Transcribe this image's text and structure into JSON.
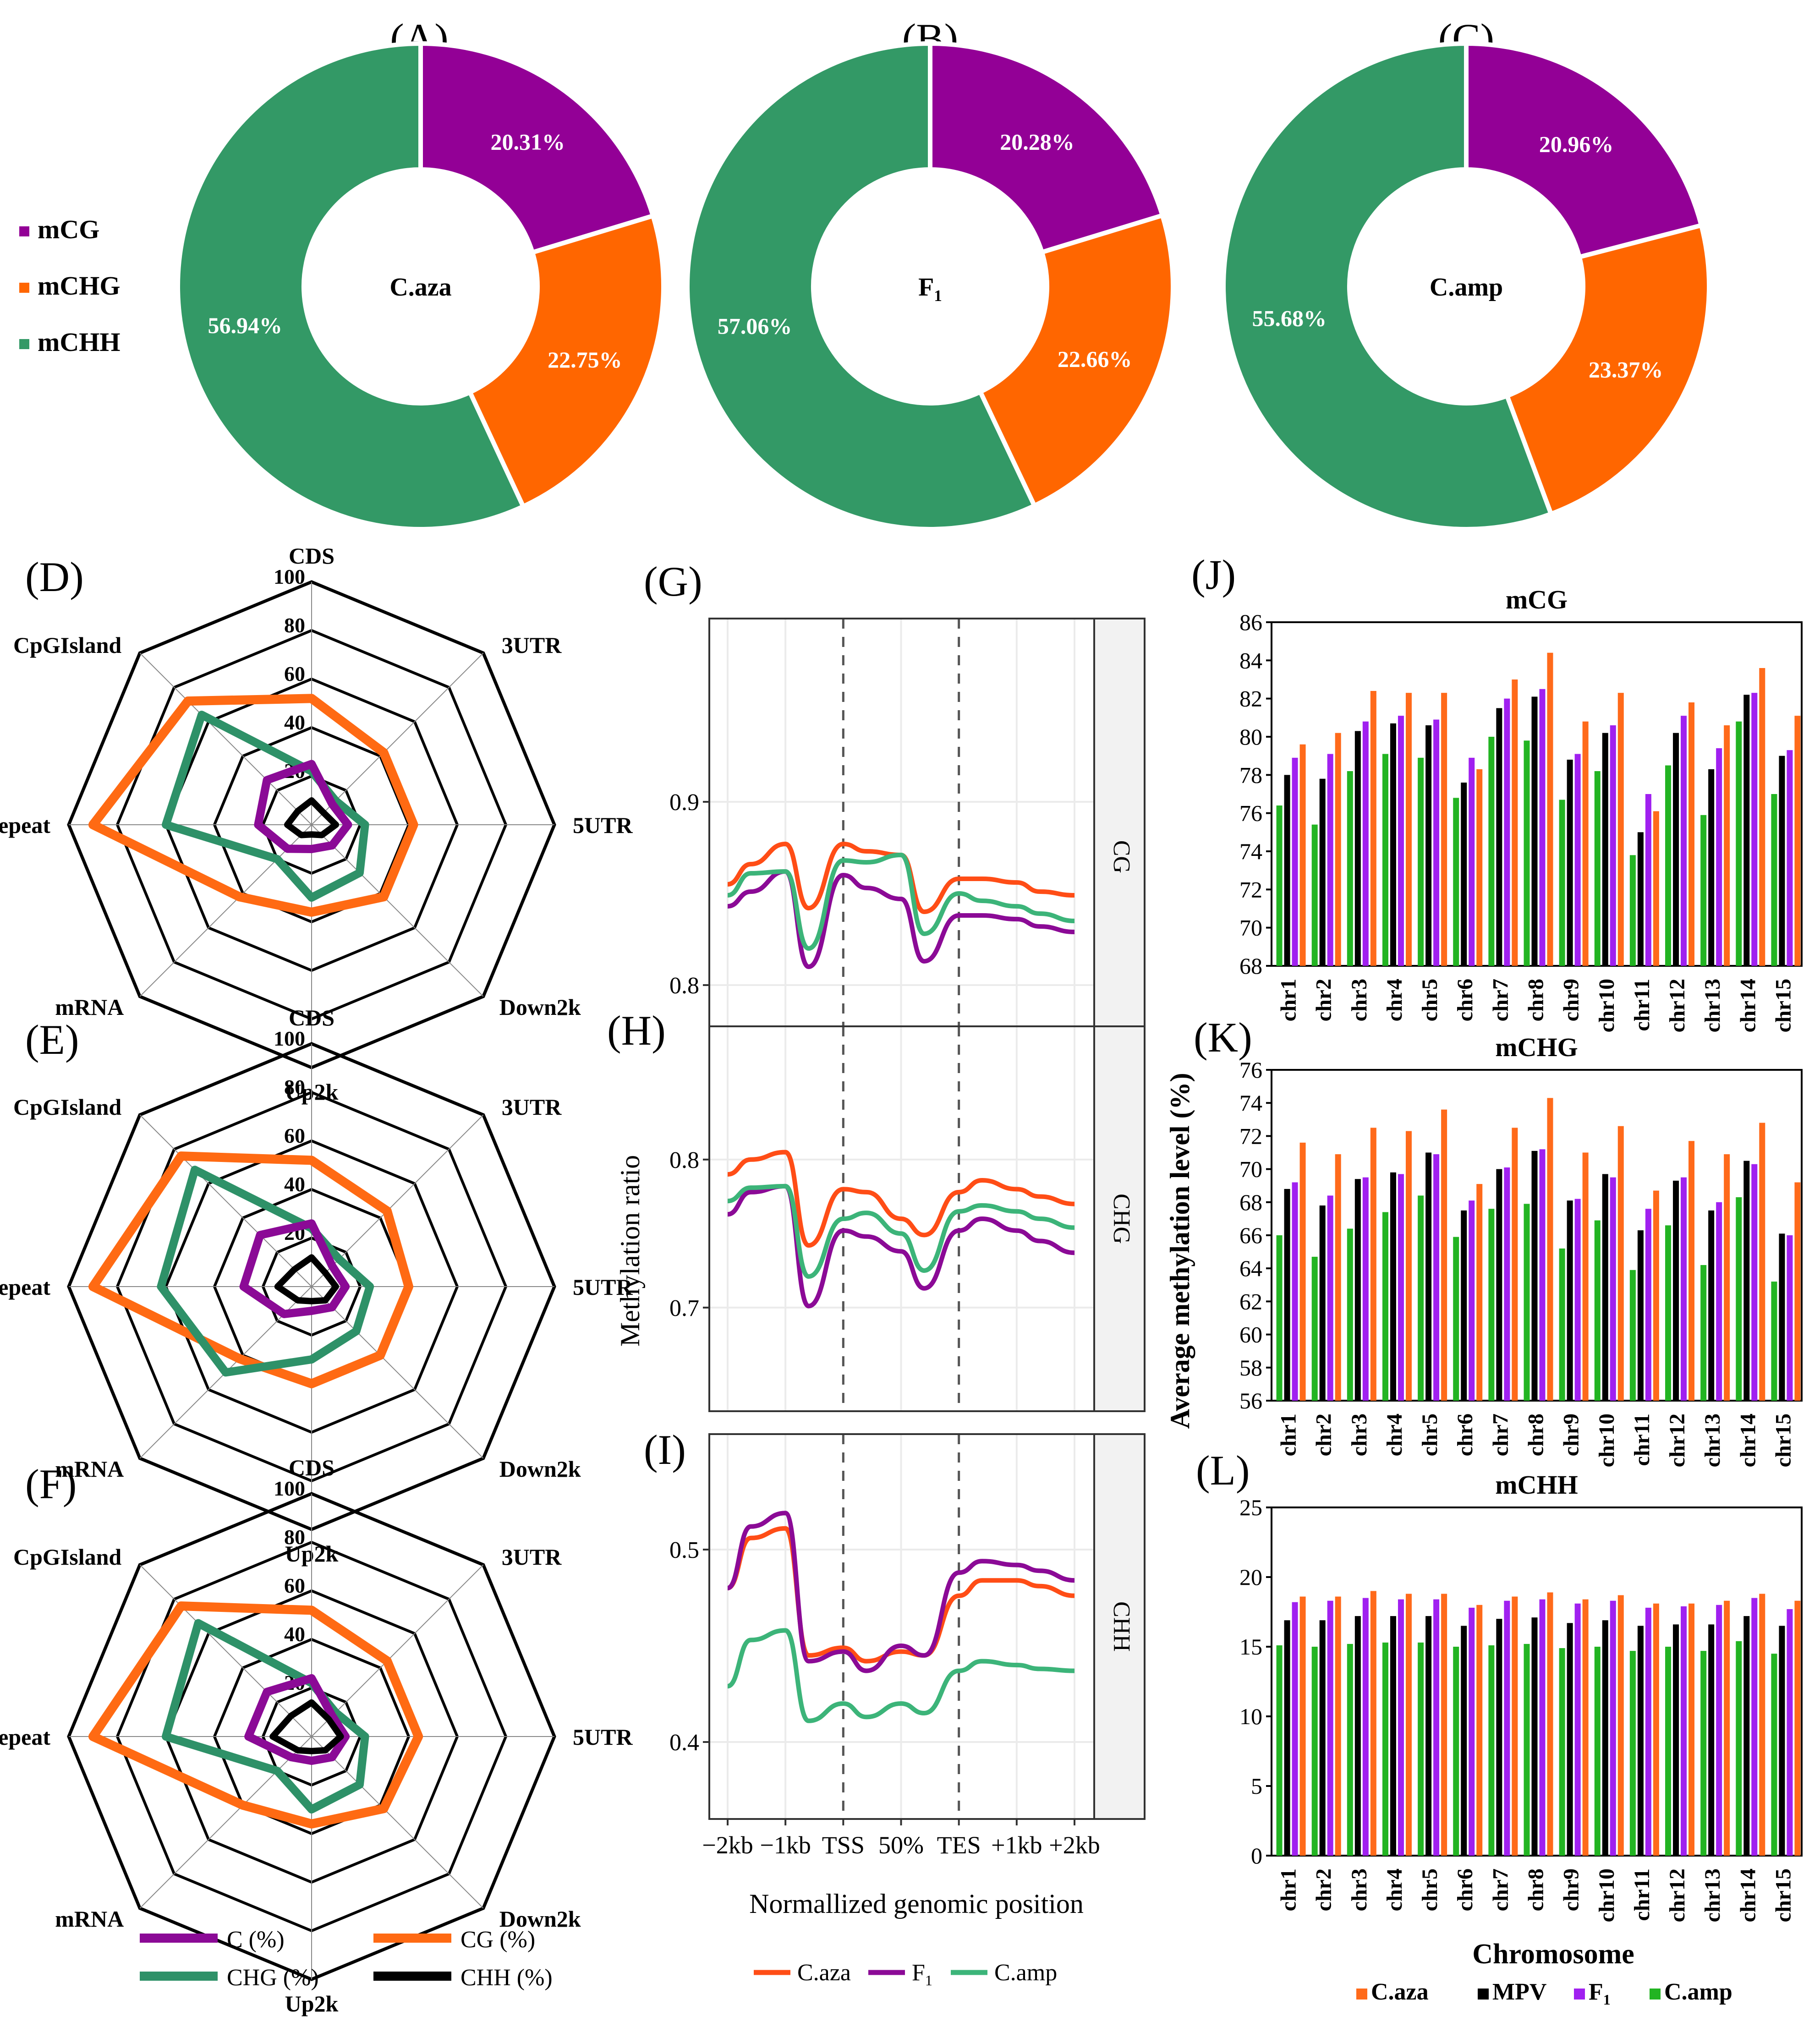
{
  "colors": {
    "mCG": "#930096",
    "mCHG": "#ff6600",
    "mCHH": "#339966",
    "radar_C": "#8b0a96",
    "radar_CG": "#ff6a13",
    "radar_CHG": "#2e9168",
    "radar_CHH": "#000000",
    "line_caza": "#ff4d16",
    "line_f1": "#8b0a96",
    "line_camp": "#3cb479",
    "bar_caza": "#ff6a1a",
    "bar_mpv": "#000000",
    "bar_f1": "#a020f0",
    "bar_camp": "#22b422"
  },
  "panel_labels": [
    "(A)",
    "(B)",
    "(C)",
    "(D)",
    "(E)",
    "(F)",
    "(G)",
    "(H)",
    "(I)",
    "(J)",
    "(K)",
    "(L)"
  ],
  "donut_legend": [
    "mCG",
    "mCHG",
    "mCHH"
  ],
  "chart_data": [
    {
      "type": "pie",
      "panel": "A",
      "center_label": "C.aza",
      "labels": [
        "mCG",
        "mCHG",
        "mCHH"
      ],
      "values": [
        20.31,
        22.75,
        56.94
      ],
      "value_labels": [
        "20.31%",
        "22.75%",
        "56.94%"
      ]
    },
    {
      "type": "pie",
      "panel": "B",
      "center_label": "F",
      "center_sub": "1",
      "labels": [
        "mCG",
        "mCHG",
        "mCHH"
      ],
      "values": [
        20.28,
        22.66,
        57.06
      ],
      "value_labels": [
        "20.28%",
        "22.66%",
        "57.06%"
      ]
    },
    {
      "type": "pie",
      "panel": "C",
      "center_label": "C.amp",
      "labels": [
        "mCG",
        "mCHG",
        "mCHH"
      ],
      "values": [
        20.96,
        23.37,
        55.68
      ],
      "value_labels": [
        "20.96%",
        "23.37%",
        "55.68%"
      ]
    },
    {
      "type": "radar",
      "panel": "D",
      "axes": [
        "CDS",
        "3UTR",
        "5UTR",
        "Down2k",
        "Up2k",
        "mRNA",
        "Repeat",
        "CpGIsland"
      ],
      "ticks": [
        "20",
        "40",
        "60",
        "80",
        "100"
      ],
      "range": [
        0,
        100
      ],
      "series": [
        {
          "name": "C (%)",
          "values": [
            25,
            12,
            15,
            12,
            10,
            14,
            22,
            26
          ]
        },
        {
          "name": "CG (%)",
          "values": [
            52,
            42,
            42,
            42,
            36,
            42,
            90,
            72
          ]
        },
        {
          "name": "CHG (%)",
          "values": [
            22,
            14,
            22,
            28,
            30,
            20,
            60,
            64
          ]
        },
        {
          "name": "CHH (%)",
          "values": [
            10,
            7,
            10,
            6,
            4,
            6,
            10,
            8
          ]
        }
      ]
    },
    {
      "type": "radar",
      "panel": "E",
      "axes": [
        "CDS",
        "3UTR",
        "5UTR",
        "Down2k",
        "Up2k",
        "mRNA",
        "Repeat",
        "CpGIsland"
      ],
      "ticks": [
        "20",
        "40",
        "60",
        "80",
        "100"
      ],
      "range": [
        0,
        100
      ],
      "series": [
        {
          "name": "C (%)",
          "values": [
            26,
            12,
            14,
            12,
            10,
            16,
            28,
            30
          ]
        },
        {
          "name": "CG (%)",
          "values": [
            52,
            44,
            40,
            40,
            40,
            42,
            90,
            76
          ]
        },
        {
          "name": "CHG (%)",
          "values": [
            24,
            16,
            24,
            26,
            30,
            50,
            62,
            68
          ]
        },
        {
          "name": "CHH (%)",
          "values": [
            12,
            8,
            10,
            8,
            6,
            8,
            14,
            10
          ]
        }
      ]
    },
    {
      "type": "radar",
      "panel": "F",
      "axes": [
        "CDS",
        "3UTR",
        "5UTR",
        "Down2k",
        "Up2k",
        "mRNA",
        "Repeat",
        "CpGIsland"
      ],
      "ticks": [
        "20",
        "40",
        "60",
        "80",
        "100"
      ],
      "range": [
        0,
        100
      ],
      "series": [
        {
          "name": "C (%)",
          "values": [
            24,
            12,
            14,
            12,
            10,
            12,
            26,
            26
          ]
        },
        {
          "name": "CG (%)",
          "values": [
            52,
            44,
            44,
            42,
            36,
            40,
            90,
            76
          ]
        },
        {
          "name": "CHG (%)",
          "values": [
            22,
            14,
            22,
            28,
            30,
            20,
            60,
            66
          ]
        },
        {
          "name": "CHH (%)",
          "values": [
            14,
            10,
            12,
            8,
            6,
            8,
            16,
            12
          ]
        }
      ]
    },
    {
      "type": "line",
      "panel": "G",
      "strip": "CG",
      "x": [
        0,
        0.4,
        1,
        1.4,
        2,
        2.4,
        3,
        3.4,
        4,
        4.4,
        5,
        5.4,
        6
      ],
      "y_ticks": [
        "0.8",
        "0.9"
      ],
      "ylim": [
        0.74,
        1.0
      ],
      "series": [
        {
          "name": "C.aza",
          "values": [
            0.855,
            0.866,
            0.877,
            0.842,
            0.877,
            0.873,
            0.871,
            0.84,
            0.858,
            0.858,
            0.856,
            0.851,
            0.849
          ]
        },
        {
          "name": "F1",
          "values": [
            0.843,
            0.851,
            0.862,
            0.81,
            0.86,
            0.853,
            0.847,
            0.813,
            0.838,
            0.838,
            0.836,
            0.832,
            0.829
          ]
        },
        {
          "name": "C.amp",
          "values": [
            0.849,
            0.861,
            0.862,
            0.82,
            0.868,
            0.867,
            0.871,
            0.828,
            0.85,
            0.846,
            0.843,
            0.839,
            0.835
          ]
        }
      ]
    },
    {
      "type": "line",
      "panel": "H",
      "strip": "CHG",
      "x": [
        0,
        0.4,
        1,
        1.4,
        2,
        2.4,
        3,
        3.4,
        4,
        4.4,
        5,
        5.4,
        6
      ],
      "y_ticks": [
        "0.7",
        "0.8"
      ],
      "ylim": [
        0.63,
        0.89
      ],
      "series": [
        {
          "name": "C.aza",
          "values": [
            0.79,
            0.8,
            0.805,
            0.742,
            0.78,
            0.778,
            0.76,
            0.749,
            0.778,
            0.786,
            0.78,
            0.775,
            0.77
          ]
        },
        {
          "name": "F1",
          "values": [
            0.763,
            0.778,
            0.782,
            0.701,
            0.752,
            0.748,
            0.738,
            0.713,
            0.752,
            0.76,
            0.752,
            0.745,
            0.737
          ]
        },
        {
          "name": "C.amp",
          "values": [
            0.772,
            0.781,
            0.782,
            0.721,
            0.76,
            0.764,
            0.75,
            0.725,
            0.765,
            0.769,
            0.765,
            0.76,
            0.754
          ]
        }
      ]
    },
    {
      "type": "line",
      "panel": "I",
      "strip": "CHH",
      "x": [
        0,
        0.4,
        1,
        1.4,
        2,
        2.4,
        3,
        3.4,
        4,
        4.4,
        5,
        5.4,
        6
      ],
      "x_tick_labels": [
        "−2kb",
        "−1kb",
        "TSS",
        "50%",
        "TES",
        "+1kb",
        "+2kb"
      ],
      "x_tick_positions": [
        0,
        1,
        2,
        3,
        4,
        5,
        6
      ],
      "y_ticks": [
        "0.4",
        "0.5"
      ],
      "ylim": [
        0.36,
        0.56
      ],
      "series": [
        {
          "name": "C.aza",
          "values": [
            0.48,
            0.506,
            0.511,
            0.445,
            0.449,
            0.442,
            0.447,
            0.445,
            0.476,
            0.484,
            0.484,
            0.481,
            0.476
          ]
        },
        {
          "name": "F1",
          "values": [
            0.48,
            0.512,
            0.519,
            0.442,
            0.447,
            0.437,
            0.45,
            0.445,
            0.488,
            0.494,
            0.492,
            0.489,
            0.484
          ]
        },
        {
          "name": "C.amp",
          "values": [
            0.429,
            0.453,
            0.458,
            0.411,
            0.42,
            0.413,
            0.42,
            0.415,
            0.437,
            0.442,
            0.44,
            0.438,
            0.437
          ]
        }
      ]
    },
    {
      "type": "bar",
      "panel": "J",
      "title": "mCG",
      "categories": [
        "chr1",
        "chr2",
        "chr3",
        "chr4",
        "chr5",
        "chr6",
        "chr7",
        "chr8",
        "chr9",
        "chr10",
        "chr11",
        "chr12",
        "chr13",
        "chr14",
        "chr15"
      ],
      "series": [
        {
          "name": "C.amp",
          "values": [
            76.4,
            75.4,
            78.2,
            79.1,
            78.9,
            76.8,
            80.0,
            79.8,
            76.7,
            78.2,
            73.8,
            78.5,
            75.9,
            80.8,
            77.0
          ]
        },
        {
          "name": "MPV",
          "values": [
            78.0,
            77.8,
            80.3,
            80.7,
            80.6,
            77.6,
            81.5,
            82.1,
            78.8,
            80.2,
            75.0,
            80.2,
            78.3,
            82.2,
            79.0
          ]
        },
        {
          "name": "F1",
          "values": [
            78.9,
            79.1,
            80.8,
            81.1,
            80.9,
            78.9,
            82.0,
            82.5,
            79.1,
            80.6,
            77.0,
            81.1,
            79.4,
            82.3,
            79.3
          ]
        },
        {
          "name": "C.aza",
          "values": [
            79.6,
            80.2,
            82.4,
            82.3,
            82.3,
            78.3,
            83.0,
            84.4,
            80.8,
            82.3,
            76.1,
            81.8,
            80.6,
            83.6,
            81.1
          ]
        }
      ],
      "ylim": [
        68,
        86
      ],
      "y_ticks": [
        "68",
        "70",
        "72",
        "74",
        "76",
        "78",
        "80",
        "82",
        "84",
        "86"
      ]
    },
    {
      "type": "bar",
      "panel": "K",
      "title": "mCHG",
      "categories": [
        "chr1",
        "chr2",
        "chr3",
        "chr4",
        "chr5",
        "chr6",
        "chr7",
        "chr8",
        "chr9",
        "chr10",
        "chr11",
        "chr12",
        "chr13",
        "chr14",
        "chr15"
      ],
      "series": [
        {
          "name": "C.amp",
          "values": [
            66.0,
            64.7,
            66.4,
            67.4,
            68.4,
            65.9,
            67.6,
            67.9,
            65.2,
            66.9,
            63.9,
            66.6,
            64.2,
            68.3,
            63.2
          ]
        },
        {
          "name": "MPV",
          "values": [
            68.8,
            67.8,
            69.4,
            69.8,
            71.0,
            67.5,
            70.0,
            71.1,
            68.1,
            69.7,
            66.3,
            69.3,
            67.5,
            70.5,
            66.1
          ]
        },
        {
          "name": "F1",
          "values": [
            69.2,
            68.4,
            69.5,
            69.7,
            70.9,
            68.1,
            70.1,
            71.2,
            68.2,
            69.5,
            67.6,
            69.5,
            68.0,
            70.3,
            66.0
          ]
        },
        {
          "name": "C.aza",
          "values": [
            71.6,
            70.9,
            72.5,
            72.3,
            73.6,
            69.1,
            72.5,
            74.3,
            71.0,
            72.6,
            68.7,
            71.7,
            70.9,
            72.8,
            69.2
          ]
        }
      ],
      "ylim": [
        56,
        76
      ],
      "y_ticks": [
        "56",
        "58",
        "60",
        "62",
        "64",
        "66",
        "68",
        "70",
        "72",
        "74",
        "76"
      ]
    },
    {
      "type": "bar",
      "panel": "L",
      "title": "mCHH",
      "categories": [
        "chr1",
        "chr2",
        "chr3",
        "chr4",
        "chr5",
        "chr6",
        "chr7",
        "chr8",
        "chr9",
        "chr10",
        "chr11",
        "chr12",
        "chr13",
        "chr14",
        "chr15"
      ],
      "series": [
        {
          "name": "C.amp",
          "values": [
            15.1,
            15.0,
            15.2,
            15.3,
            15.3,
            15.0,
            15.1,
            15.2,
            14.9,
            15.0,
            14.7,
            15.0,
            14.7,
            15.4,
            14.5
          ]
        },
        {
          "name": "MPV",
          "values": [
            16.9,
            16.9,
            17.2,
            17.2,
            17.2,
            16.5,
            17.0,
            17.1,
            16.7,
            16.9,
            16.5,
            16.6,
            16.6,
            17.2,
            16.5
          ]
        },
        {
          "name": "F1",
          "values": [
            18.2,
            18.3,
            18.5,
            18.4,
            18.4,
            17.8,
            18.3,
            18.4,
            18.1,
            18.3,
            17.8,
            17.9,
            18.0,
            18.5,
            17.7
          ]
        },
        {
          "name": "C.aza",
          "values": [
            18.6,
            18.6,
            19.0,
            18.8,
            18.8,
            18.0,
            18.6,
            18.9,
            18.4,
            18.7,
            18.1,
            18.1,
            18.3,
            18.8,
            18.3
          ]
        }
      ],
      "ylim": [
        0,
        25
      ],
      "y_ticks": [
        "0",
        "5",
        "10",
        "15",
        "20",
        "25"
      ]
    }
  ],
  "line_ylabel": "Methylation ratio",
  "line_xlabel": "Normallized genomic position",
  "line_legend": [
    {
      "name": "C.aza"
    },
    {
      "name": "F",
      "sub": "1"
    },
    {
      "name": "C.amp"
    }
  ],
  "bar_ylabel": "Average methylation level (%)",
  "bar_xlabel": "Chromosome",
  "bar_legend": [
    {
      "name": "C.aza"
    },
    {
      "name": "MPV"
    },
    {
      "name": "F",
      "sub": "1"
    },
    {
      "name": "C.amp"
    }
  ],
  "radar_legend": [
    "C (%)",
    "CG (%)",
    "CHG (%)",
    "CHH (%)"
  ]
}
